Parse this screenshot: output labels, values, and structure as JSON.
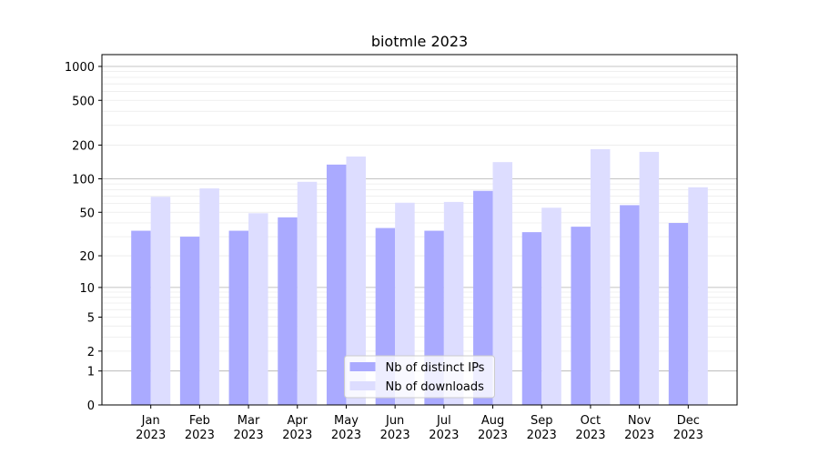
{
  "chart_data": {
    "type": "bar",
    "title": "biotmle 2023",
    "categories": [
      "Jan 2023",
      "Feb 2023",
      "Mar 2023",
      "Apr 2023",
      "May 2023",
      "Jun 2023",
      "Jul 2023",
      "Aug 2023",
      "Sep 2023",
      "Oct 2023",
      "Nov 2023",
      "Dec 2023"
    ],
    "series": [
      {
        "name": "Nb of distinct IPs",
        "color": "#aaaaff",
        "values": [
          34,
          30,
          34,
          45,
          134,
          36,
          34,
          78,
          33,
          37,
          58,
          40
        ]
      },
      {
        "name": "Nb of downloads",
        "color": "#ddddff",
        "values": [
          69,
          82,
          49,
          94,
          158,
          61,
          62,
          141,
          55,
          184,
          174,
          84
        ]
      }
    ],
    "yscale": "log1p",
    "ylim": [
      0,
      1273
    ],
    "yticks": [
      0,
      1,
      2,
      5,
      10,
      20,
      50,
      100,
      200,
      500,
      1000
    ],
    "grid": true,
    "ygrid_major": [
      1,
      10,
      100,
      1000
    ],
    "ygrid_minor": [
      2,
      3,
      4,
      5,
      6,
      7,
      8,
      9,
      20,
      30,
      40,
      50,
      60,
      70,
      80,
      90,
      200,
      300,
      400,
      500,
      600,
      700,
      800,
      900
    ],
    "legend": "lower center"
  }
}
